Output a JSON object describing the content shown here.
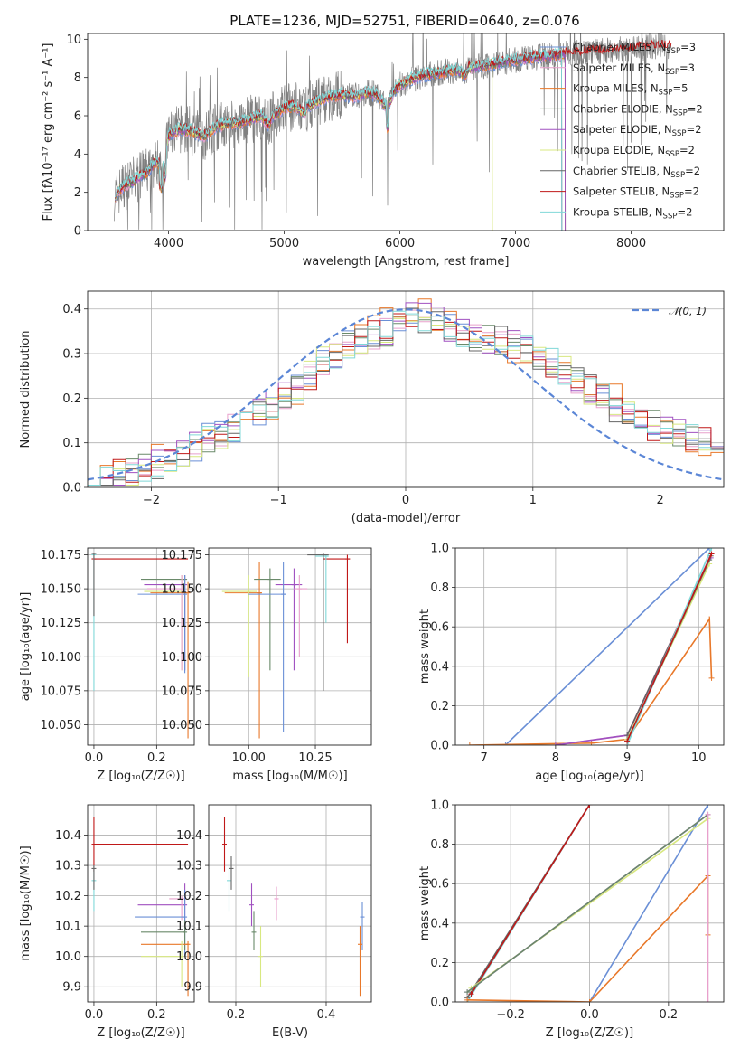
{
  "title": "PLATE=1236, MJD=52751, FIBERID=0640, z=0.076",
  "colors": {
    "chabrier_miles": "#6a8fd6",
    "salpeter_miles": "#e8a0cc",
    "kroupa_miles": "#e8782a",
    "chabrier_elodie": "#6a8a6a",
    "salpeter_elodie": "#a050c0",
    "kroupa_elodie": "#d8e880",
    "chabrier_stelib": "#666666",
    "salpeter_stelib": "#c01818",
    "kroupa_stelib": "#80d8d8",
    "spectrum": "#808080",
    "normal": "#5b86d6"
  },
  "chart_data": [
    {
      "type": "line",
      "panel": "spectrum",
      "xlabel": "wavelength [Angstrom, rest frame]",
      "ylabel": "Flux [fλ10⁻¹⁷ erg cm⁻² s⁻¹ A⁻¹]",
      "xlim": [
        3300,
        8800
      ],
      "ylim": [
        0,
        10.3
      ],
      "xticks": [
        "4000",
        "5000",
        "6000",
        "7000",
        "8000"
      ],
      "yticks": [
        "0",
        "2",
        "4",
        "6",
        "8",
        "10"
      ],
      "grid": false,
      "legend_position": "top-right",
      "legend": [
        {
          "base": "Chabrier MILES, N",
          "sub": "SSP",
          "tail": "=3"
        },
        {
          "base": "Salpeter MILES, N",
          "sub": "SSP",
          "tail": "=3"
        },
        {
          "base": "Kroupa MILES, N",
          "sub": "SSP",
          "tail": "=5"
        },
        {
          "base": "Chabrier ELODIE, N",
          "sub": "SSP",
          "tail": "=2"
        },
        {
          "base": "Salpeter ELODIE, N",
          "sub": "SSP",
          "tail": "=2"
        },
        {
          "base": "Kroupa ELODIE, N",
          "sub": "SSP",
          "tail": "=2"
        },
        {
          "base": "Chabrier STELIB, N",
          "sub": "SSP",
          "tail": "=2"
        },
        {
          "base": "Salpeter STELIB, N",
          "sub": "SSP",
          "tail": "=2"
        },
        {
          "base": "Kroupa STELIB, N",
          "sub": "SSP",
          "tail": "=2"
        }
      ],
      "model_curve": {
        "x": [
          3540,
          3600,
          3700,
          3800,
          3900,
          3950,
          4000,
          4100,
          4200,
          4300,
          4400,
          4500,
          4600,
          4700,
          4800,
          4860,
          4900,
          5000,
          5100,
          5175,
          5200,
          5300,
          5400,
          5500,
          5600,
          5700,
          5800,
          5890,
          5950,
          6000,
          6100,
          6200,
          6300,
          6400,
          6500,
          6563,
          6600,
          6700,
          6800,
          6900,
          7000,
          7100,
          7200,
          7300,
          7400
        ],
        "y": [
          1.8,
          2.3,
          2.6,
          3.0,
          3.6,
          3.3,
          5.0,
          5.3,
          5.2,
          4.9,
          5.4,
          5.6,
          5.6,
          5.8,
          6.0,
          5.5,
          6.0,
          6.4,
          6.5,
          6.1,
          6.5,
          6.8,
          7.0,
          7.1,
          7.0,
          7.2,
          7.1,
          6.4,
          7.3,
          7.6,
          7.9,
          8.1,
          8.2,
          8.3,
          8.4,
          8.1,
          8.5,
          8.6,
          8.7,
          8.8,
          8.9,
          9.0,
          9.1,
          9.1,
          9.2
        ]
      },
      "spectrum_range": [
        3530,
        8350
      ]
    },
    {
      "type": "line",
      "panel": "residual-histogram",
      "xlabel": "(data-model)/error",
      "ylabel": "Normed distribution",
      "xlim": [
        -2.5,
        2.5
      ],
      "ylim": [
        0,
        0.44
      ],
      "xticks": [
        "−2",
        "−1",
        "0",
        "1",
        "2"
      ],
      "yticks": [
        "0.0",
        "0.1",
        "0.2",
        "0.3",
        "0.4"
      ],
      "grid": true,
      "legend_position": "top-right",
      "legend": [
        {
          "label": "𝒩(0, 1)"
        }
      ],
      "bin_width": 0.1,
      "histogram_envelope": [
        0.02,
        0.025,
        0.03,
        0.035,
        0.04,
        0.05,
        0.06,
        0.08,
        0.09,
        0.11,
        0.12,
        0.13,
        0.15,
        0.17,
        0.19,
        0.21,
        0.23,
        0.25,
        0.28,
        0.3,
        0.32,
        0.33,
        0.34,
        0.35,
        0.37,
        0.38,
        0.38,
        0.37,
        0.36,
        0.35,
        0.34,
        0.33,
        0.33,
        0.32,
        0.31,
        0.3,
        0.28,
        0.26,
        0.24,
        0.22,
        0.2,
        0.18,
        0.16,
        0.15,
        0.14,
        0.13,
        0.12,
        0.11,
        0.1,
        0.09
      ]
    },
    {
      "type": "scatter",
      "panel": "age-vs-Z",
      "xlabel": "Z [log₁₀(Z/Z☉)]",
      "ylabel": "age  [log₁₀(age/yr)]",
      "xlim": [
        -0.02,
        0.32
      ],
      "ylim": [
        10.035,
        10.18
      ],
      "xticks": [
        "0.0",
        "0.2"
      ],
      "yticks": [
        "10.050",
        "10.075",
        "10.100",
        "10.125",
        "10.150",
        "10.175"
      ],
      "grid": true,
      "points": [
        {
          "model": "salpeter_stelib",
          "x": 0.0,
          "y": 10.172,
          "xerr": [
            0.0,
            0.3
          ],
          "yerr": [
            10.172,
            10.172
          ]
        },
        {
          "model": "kroupa_stelib",
          "x": 0.0,
          "y": 10.175,
          "xerr": [
            0.0,
            0.0
          ],
          "yerr": [
            10.075,
            10.176
          ]
        },
        {
          "model": "chabrier_stelib",
          "x": 0.0,
          "y": 10.176,
          "xerr": [
            0.0,
            0.0
          ],
          "yerr": [
            10.13,
            10.176
          ]
        },
        {
          "model": "chabrier_elodie",
          "x": 0.29,
          "y": 10.157,
          "xerr": [
            0.15,
            0.29
          ],
          "yerr": [
            10.09,
            10.16
          ]
        },
        {
          "model": "salpeter_elodie",
          "x": 0.29,
          "y": 10.153,
          "xerr": [
            0.16,
            0.29
          ],
          "yerr": [
            10.09,
            10.16
          ]
        },
        {
          "model": "kroupa_elodie",
          "x": 0.28,
          "y": 10.148,
          "xerr": [
            0.16,
            0.28
          ],
          "yerr": [
            10.09,
            10.16
          ]
        },
        {
          "model": "chabrier_miles",
          "x": 0.29,
          "y": 10.146,
          "xerr": [
            0.14,
            0.29
          ],
          "yerr": [
            10.088,
            10.16
          ]
        },
        {
          "model": "salpeter_miles",
          "x": 0.28,
          "y": 10.15,
          "xerr": [
            0.17,
            0.28
          ],
          "yerr": [
            10.09,
            10.16
          ]
        },
        {
          "model": "kroupa_miles",
          "x": 0.3,
          "y": 10.147,
          "xerr": [
            0.18,
            0.3
          ],
          "yerr": [
            10.04,
            10.155
          ]
        }
      ]
    },
    {
      "type": "scatter",
      "panel": "age-vs-mass",
      "xlabel": "mass [log₁₀(M/M☉)]",
      "ylabel": "",
      "xlim": [
        9.85,
        10.46
      ],
      "ylim": [
        10.035,
        10.18
      ],
      "xticks": [
        "10.00",
        "10.25"
      ],
      "yticks": [
        "10.050",
        "10.075",
        "10.100",
        "10.125",
        "10.150",
        "10.175"
      ],
      "grid": true,
      "points": [
        {
          "model": "salpeter_stelib",
          "x": 10.37,
          "y": 10.172,
          "xerr": [
            10.28,
            10.38
          ],
          "yerr": [
            10.11,
            10.175
          ]
        },
        {
          "model": "kroupa_stelib",
          "x": 10.29,
          "y": 10.174,
          "xerr": [
            10.25,
            10.3
          ],
          "yerr": [
            10.125,
            10.175
          ]
        },
        {
          "model": "chabrier_stelib",
          "x": 10.28,
          "y": 10.175,
          "xerr": [
            10.22,
            10.3
          ],
          "yerr": [
            10.075,
            10.176
          ]
        },
        {
          "model": "kroupa_miles",
          "x": 10.04,
          "y": 10.147,
          "xerr": [
            9.91,
            10.05
          ],
          "yerr": [
            10.04,
            10.17
          ]
        },
        {
          "model": "kroupa_elodie",
          "x": 10.0,
          "y": 10.148,
          "xerr": [
            9.9,
            10.03
          ],
          "yerr": [
            10.085,
            10.16
          ]
        },
        {
          "model": "chabrier_elodie",
          "x": 10.08,
          "y": 10.157,
          "xerr": [
            10.02,
            10.12
          ],
          "yerr": [
            10.09,
            10.165
          ]
        },
        {
          "model": "salpeter_elodie",
          "x": 10.17,
          "y": 10.153,
          "xerr": [
            10.1,
            10.2
          ],
          "yerr": [
            10.09,
            10.165
          ]
        },
        {
          "model": "salpeter_miles",
          "x": 10.19,
          "y": 10.15,
          "xerr": [
            10.17,
            10.22
          ],
          "yerr": [
            10.1,
            10.16
          ]
        },
        {
          "model": "chabrier_miles",
          "x": 10.13,
          "y": 10.146,
          "xerr": [
            10.0,
            10.14
          ],
          "yerr": [
            10.045,
            10.17
          ]
        }
      ]
    },
    {
      "type": "line",
      "panel": "mass-weight-vs-age",
      "xlabel": "age  [log₁₀(age/yr)]",
      "ylabel": "mass weight",
      "xlim": [
        6.6,
        10.35
      ],
      "ylim": [
        0,
        1.0
      ],
      "xticks": [
        "7",
        "8",
        "9",
        "10"
      ],
      "yticks": [
        "0.0",
        "0.2",
        "0.4",
        "0.6",
        "0.8",
        "1.0"
      ],
      "grid": true,
      "series": [
        {
          "model": "chabrier_miles",
          "x": [
            7.3,
            10.15
          ],
          "y": [
            0.0,
            1.0
          ]
        },
        {
          "model": "kroupa_miles",
          "x": [
            6.8,
            8.5,
            9.0,
            10.15,
            10.18
          ],
          "y": [
            0.0,
            0.01,
            0.03,
            0.64,
            0.34
          ]
        },
        {
          "model": "salpeter_miles",
          "x": [
            8.0,
            9.0,
            10.15
          ],
          "y": [
            0.0,
            0.05,
            0.95
          ]
        },
        {
          "model": "salpeter_elodie",
          "x": [
            8.0,
            9.0,
            10.17
          ],
          "y": [
            0.0,
            0.05,
            0.95
          ]
        },
        {
          "model": "kroupa_elodie",
          "x": [
            9.0,
            10.15
          ],
          "y": [
            0.03,
            0.92
          ]
        },
        {
          "model": "chabrier_elodie",
          "x": [
            9.0,
            10.15
          ],
          "y": [
            0.02,
            0.94
          ]
        },
        {
          "model": "chabrier_stelib",
          "x": [
            9.0,
            10.17
          ],
          "y": [
            0.05,
            0.96
          ]
        },
        {
          "model": "kroupa_stelib",
          "x": [
            9.0,
            10.18
          ],
          "y": [
            0.0,
            1.0
          ]
        },
        {
          "model": "salpeter_stelib",
          "x": [
            9.0,
            10.18
          ],
          "y": [
            0.02,
            0.97
          ]
        }
      ]
    },
    {
      "type": "scatter",
      "panel": "mass-vs-Z",
      "xlabel": "Z [log₁₀(Z/Z☉)]",
      "ylabel": "mass [log₁₀(M/M☉)]",
      "xlim": [
        -0.02,
        0.32
      ],
      "ylim": [
        9.85,
        10.5
      ],
      "xticks": [
        "0.0",
        "0.2"
      ],
      "yticks": [
        "9.9",
        "10.0",
        "10.1",
        "10.2",
        "10.3",
        "10.4"
      ],
      "grid": true,
      "points": [
        {
          "model": "salpeter_stelib",
          "x": 0.0,
          "y": 10.37,
          "xerr": [
            0.0,
            0.3
          ],
          "yerr": [
            10.28,
            10.46
          ]
        },
        {
          "model": "kroupa_stelib",
          "x": 0.0,
          "y": 10.25,
          "xerr": [
            0.0,
            0.0
          ],
          "yerr": [
            10.15,
            10.3
          ]
        },
        {
          "model": "chabrier_stelib",
          "x": 0.0,
          "y": 10.29,
          "xerr": [
            0.0,
            0.0
          ],
          "yerr": [
            10.22,
            10.3
          ]
        },
        {
          "model": "salpeter_elodie",
          "x": 0.29,
          "y": 10.17,
          "xerr": [
            0.14,
            0.29
          ],
          "yerr": [
            10.1,
            10.24
          ]
        },
        {
          "model": "salpeter_miles",
          "x": 0.28,
          "y": 10.19,
          "xerr": [
            0.24,
            0.29
          ],
          "yerr": [
            10.12,
            10.2
          ]
        },
        {
          "model": "chabrier_miles",
          "x": 0.29,
          "y": 10.13,
          "xerr": [
            0.13,
            0.29
          ],
          "yerr": [
            10.0,
            10.22
          ]
        },
        {
          "model": "chabrier_elodie",
          "x": 0.29,
          "y": 10.08,
          "xerr": [
            0.15,
            0.29
          ],
          "yerr": [
            10.02,
            10.12
          ]
        },
        {
          "model": "kroupa_miles",
          "x": 0.3,
          "y": 10.04,
          "xerr": [
            0.15,
            0.3
          ],
          "yerr": [
            9.87,
            10.05
          ]
        },
        {
          "model": "kroupa_elodie",
          "x": 0.28,
          "y": 10.0,
          "xerr": [
            0.15,
            0.28
          ],
          "yerr": [
            9.9,
            10.05
          ]
        }
      ]
    },
    {
      "type": "scatter",
      "panel": "mass-vs-EBV",
      "xlabel": "E(B-V)",
      "ylabel": "",
      "xlim": [
        0.14,
        0.5
      ],
      "ylim": [
        9.85,
        10.5
      ],
      "xticks": [
        "0.2",
        "0.4"
      ],
      "yticks": [
        "9.9",
        "10.0",
        "10.1",
        "10.2",
        "10.3",
        "10.4"
      ],
      "grid": true,
      "points": [
        {
          "model": "salpeter_stelib",
          "x": 0.175,
          "y": 10.37,
          "yerr": [
            10.28,
            10.46
          ]
        },
        {
          "model": "kroupa_stelib",
          "x": 0.185,
          "y": 10.25,
          "yerr": [
            10.15,
            10.3
          ]
        },
        {
          "model": "chabrier_stelib",
          "x": 0.19,
          "y": 10.29,
          "yerr": [
            10.22,
            10.33
          ]
        },
        {
          "model": "salpeter_elodie",
          "x": 0.235,
          "y": 10.17,
          "yerr": [
            10.1,
            10.24
          ]
        },
        {
          "model": "chabrier_elodie",
          "x": 0.24,
          "y": 10.08,
          "yerr": [
            10.02,
            10.15
          ]
        },
        {
          "model": "kroupa_elodie",
          "x": 0.255,
          "y": 10.0,
          "yerr": [
            9.9,
            10.1
          ]
        },
        {
          "model": "salpeter_miles",
          "x": 0.29,
          "y": 10.19,
          "yerr": [
            10.12,
            10.23
          ]
        },
        {
          "model": "chabrier_miles",
          "x": 0.48,
          "y": 10.13,
          "yerr": [
            10.02,
            10.18
          ]
        },
        {
          "model": "kroupa_miles",
          "x": 0.475,
          "y": 10.04,
          "yerr": [
            9.87,
            10.1
          ]
        }
      ]
    },
    {
      "type": "line",
      "panel": "mass-weight-vs-Z",
      "xlabel": "Z [log₁₀(Z/Z☉)]",
      "ylabel": "mass weight",
      "xlim": [
        -0.34,
        0.34
      ],
      "ylim": [
        0,
        1.0
      ],
      "xticks": [
        "−0.2",
        "0.0",
        "0.2"
      ],
      "yticks": [
        "0.0",
        "0.2",
        "0.4",
        "0.6",
        "0.8",
        "1.0"
      ],
      "grid": true,
      "series": [
        {
          "model": "kroupa_stelib",
          "x": [
            -0.31,
            0.0
          ],
          "y": [
            0.0,
            1.0
          ]
        },
        {
          "model": "chabrier_stelib",
          "x": [
            -0.31,
            0.0
          ],
          "y": [
            0.02,
            1.0
          ]
        },
        {
          "model": "salpeter_stelib",
          "x": [
            -0.3,
            0.0
          ],
          "y": [
            0.04,
            1.0
          ]
        },
        {
          "model": "chabrier_miles",
          "x": [
            0.0,
            0.3
          ],
          "y": [
            0.0,
            1.0
          ]
        },
        {
          "model": "kroupa_miles",
          "x": [
            -0.31,
            0.0,
            0.3,
            0.3
          ],
          "y": [
            0.01,
            0.0,
            0.64,
            0.34
          ]
        },
        {
          "model": "kroupa_elodie",
          "x": [
            -0.3,
            0.3
          ],
          "y": [
            0.07,
            0.93
          ]
        },
        {
          "model": "salpeter_elodie",
          "x": [
            -0.31,
            0.3
          ],
          "y": [
            0.05,
            0.95
          ]
        },
        {
          "model": "chabrier_elodie",
          "x": [
            -0.31,
            0.3
          ],
          "y": [
            0.05,
            0.95
          ]
        },
        {
          "model": "salpeter_miles",
          "x": [
            0.3,
            0.3
          ],
          "y": [
            0.0,
            0.95
          ]
        }
      ]
    }
  ]
}
